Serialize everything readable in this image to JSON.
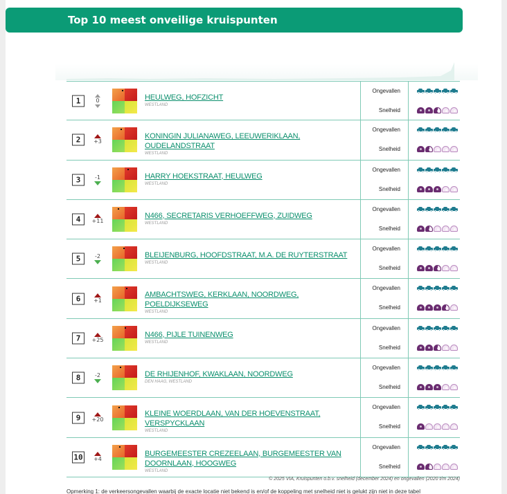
{
  "header": {
    "title": "Top 10 meest onveilige kruispunten"
  },
  "labels": {
    "accidents": "Ongevallen",
    "speed": "Snelheid"
  },
  "colors": {
    "brand": "#0b9b76",
    "car": "#1f7c8f",
    "gauge": "#6a2c70"
  },
  "rows": [
    {
      "rank": "1",
      "change": "0",
      "direction": "neutral",
      "name": "HEULWEG, HOFZICHT",
      "municipality": "WESTLAND",
      "accidents": 5,
      "speed": 2.5
    },
    {
      "rank": "2",
      "change": "+3",
      "direction": "up",
      "name": "KONINGIN JULIANAWEG, LEEUWERIKLAAN, OUDELANDSTRAAT",
      "municipality": "WESTLAND",
      "accidents": 5,
      "speed": 1.5
    },
    {
      "rank": "3",
      "change": "-1",
      "direction": "down",
      "name": "HARRY HOEKSTRAAT, HEULWEG",
      "municipality": "WESTLAND",
      "accidents": 5,
      "speed": 3
    },
    {
      "rank": "4",
      "change": "+11",
      "direction": "up",
      "name": "N466, SECRETARIS VERHOEFFWEG, ZUIDWEG",
      "municipality": "WESTLAND",
      "accidents": 5,
      "speed": 1.5
    },
    {
      "rank": "5",
      "change": "-2",
      "direction": "down",
      "name": "BLEIJENBURG, HOOFDSTRAAT, M.A. DE RUYTERSTRAAT",
      "municipality": "WESTLAND",
      "accidents": 5,
      "speed": 2.5
    },
    {
      "rank": "6",
      "change": "+1",
      "direction": "up",
      "name": "AMBACHTSWEG, KERKLAAN, NOORDWEG, POELDIJKSEWEG",
      "municipality": "WESTLAND",
      "accidents": 5,
      "speed": 3.5
    },
    {
      "rank": "7",
      "change": "+25",
      "direction": "up",
      "name": "N466, PIJLE TUINENWEG",
      "municipality": "WESTLAND",
      "accidents": 5,
      "speed": 2.5
    },
    {
      "rank": "8",
      "change": "-2",
      "direction": "down",
      "name": "DE RHIJENHOF, KWAKLAAN, NOORDWEG",
      "municipality": "DEN HAAG, WESTLAND",
      "accidents": 5,
      "speed": 3
    },
    {
      "rank": "9",
      "change": "+20",
      "direction": "up",
      "name": "KLEINE WOERDLAAN, VAN DER HOEVENSTRAAT, VERSPYCKLAAN",
      "municipality": "WESTLAND",
      "accidents": 5,
      "speed": 1
    },
    {
      "rank": "10",
      "change": "+4",
      "direction": "up",
      "name": "BURGEMEESTER CREZEELAAN, BURGEMEESTER VAN DOORNLAAN, HOOGWEG",
      "municipality": "WESTLAND",
      "accidents": 5,
      "speed": 1.5
    }
  ],
  "footer": {
    "copyright": "© 2025 VIA, Kruispunten o.b.v. snelheid (december 2024) en ongevallen (2020 t/m 2024)",
    "remark": "Opmerking 1: de verkeersongevallen waarbij de exacte locatie niet bekend is en/of de koppeling met snelheid niet is gelukt zijn niet in deze tabel"
  }
}
